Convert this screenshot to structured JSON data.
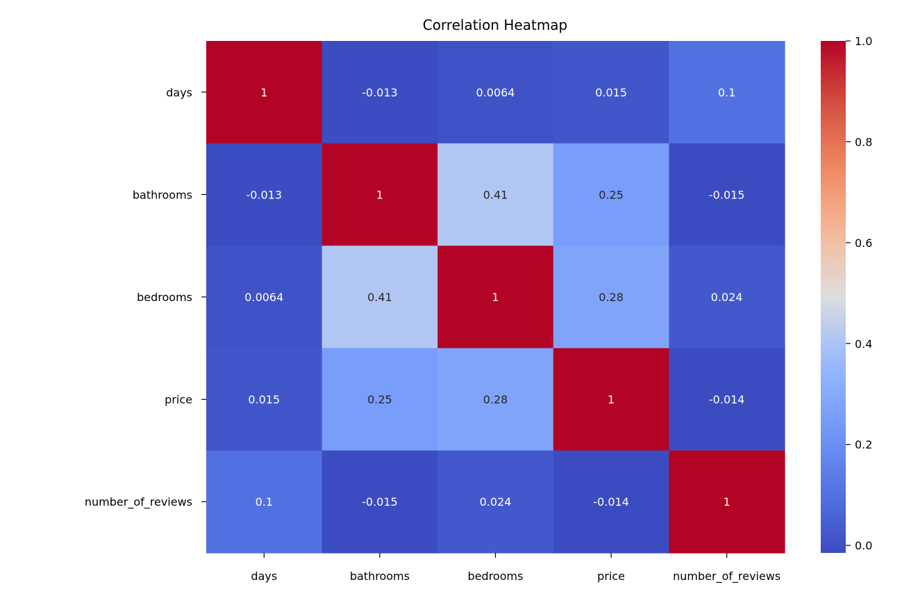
{
  "chart_data": {
    "type": "heatmap",
    "title": "Correlation Heatmap",
    "xlabel": "",
    "ylabel": "",
    "x_categories": [
      "days",
      "bathrooms",
      "bedrooms",
      "price",
      "number_of_reviews"
    ],
    "y_categories": [
      "days",
      "bathrooms",
      "bedrooms",
      "price",
      "number_of_reviews"
    ],
    "values": [
      [
        1,
        -0.013,
        0.0064,
        0.015,
        0.1
      ],
      [
        -0.013,
        1,
        0.41,
        0.25,
        -0.015
      ],
      [
        0.0064,
        0.41,
        1,
        0.28,
        0.024
      ],
      [
        0.015,
        0.25,
        0.28,
        1,
        -0.014
      ],
      [
        0.1,
        -0.015,
        0.024,
        -0.014,
        1
      ]
    ],
    "annotations": [
      [
        "1",
        "-0.013",
        "0.0064",
        "0.015",
        "0.1"
      ],
      [
        "-0.013",
        "1",
        "0.41",
        "0.25",
        "-0.015"
      ],
      [
        "0.0064",
        "0.41",
        "1",
        "0.28",
        "0.024"
      ],
      [
        "0.015",
        "0.25",
        "0.28",
        "1",
        "-0.014"
      ],
      [
        "0.1",
        "-0.015",
        "0.024",
        "-0.014",
        "1"
      ]
    ],
    "colormap": "coolwarm",
    "colorbar": {
      "range": [
        -0.015,
        1.0
      ],
      "ticks": [
        0.0,
        0.2,
        0.4,
        0.6,
        0.8,
        1.0
      ],
      "tick_labels": [
        "0.0",
        "0.2",
        "0.4",
        "0.6",
        "0.8",
        "1.0"
      ]
    },
    "grid": false,
    "legend": "colorbar-right"
  }
}
